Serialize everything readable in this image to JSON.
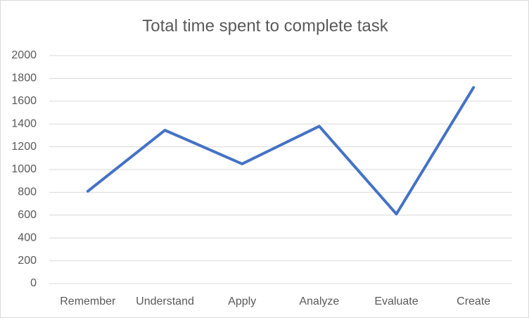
{
  "chart_data": {
    "type": "line",
    "title": "Total time spent to complete task",
    "categories": [
      "Remember",
      "Understand",
      "Apply",
      "Analyze",
      "Evaluate",
      "Create"
    ],
    "values": [
      810,
      1345,
      1050,
      1380,
      610,
      1720
    ],
    "color": "#4472c4",
    "ylim": [
      0,
      2000
    ],
    "yticks": [
      0,
      200,
      400,
      600,
      800,
      1000,
      1200,
      1400,
      1600,
      1800,
      2000
    ],
    "grid": true
  }
}
